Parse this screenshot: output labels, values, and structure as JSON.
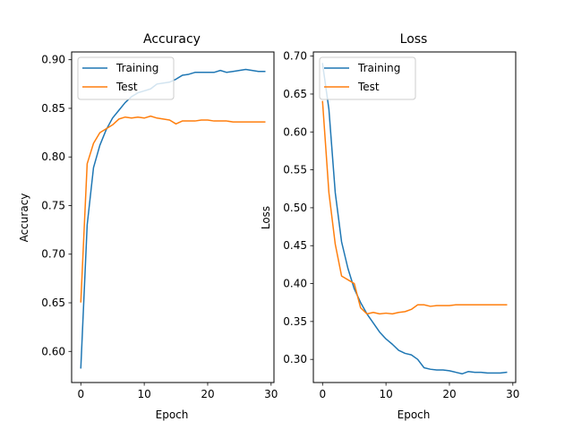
{
  "colors": {
    "training": "#1f77b4",
    "test": "#ff7f0e"
  },
  "chart_data": [
    {
      "type": "line",
      "title": "Accuracy",
      "xlabel": "Epoch",
      "ylabel": "Accuracy",
      "xlim": [
        -1.45,
        30.45
      ],
      "ylim": [
        0.568,
        0.908
      ],
      "xticks": [
        0,
        10,
        20,
        30
      ],
      "xtick_labels": [
        "0",
        "10",
        "20",
        "30"
      ],
      "yticks": [
        0.6,
        0.65,
        0.7,
        0.75,
        0.8,
        0.85,
        0.9
      ],
      "ytick_labels": [
        "0.60",
        "0.65",
        "0.70",
        "0.75",
        "0.80",
        "0.85",
        "0.90"
      ],
      "legend": "top-left",
      "grid": false,
      "x": [
        0,
        1,
        2,
        3,
        4,
        5,
        6,
        7,
        8,
        9,
        10,
        11,
        12,
        13,
        14,
        15,
        16,
        17,
        18,
        19,
        20,
        21,
        22,
        23,
        24,
        25,
        26,
        27,
        28,
        29
      ],
      "series": [
        {
          "name": "Training",
          "color_key": "training",
          "values": [
            0.583,
            0.73,
            0.789,
            0.812,
            0.828,
            0.84,
            0.848,
            0.856,
            0.862,
            0.866,
            0.868,
            0.87,
            0.875,
            0.876,
            0.877,
            0.88,
            0.884,
            0.885,
            0.887,
            0.887,
            0.887,
            0.887,
            0.889,
            0.887,
            0.888,
            0.889,
            0.89,
            0.889,
            0.888,
            0.888
          ]
        },
        {
          "name": "Test",
          "color_key": "test",
          "values": [
            0.651,
            0.793,
            0.814,
            0.825,
            0.829,
            0.833,
            0.839,
            0.841,
            0.84,
            0.841,
            0.84,
            0.842,
            0.84,
            0.839,
            0.838,
            0.834,
            0.837,
            0.837,
            0.837,
            0.838,
            0.838,
            0.837,
            0.837,
            0.837,
            0.836,
            0.836,
            0.836,
            0.836,
            0.836,
            0.836
          ]
        }
      ]
    },
    {
      "type": "line",
      "title": "Loss",
      "xlabel": "Epoch",
      "ylabel": "Loss",
      "xlim": [
        -1.45,
        30.45
      ],
      "ylim": [
        0.2695,
        0.7055
      ],
      "xticks": [
        0,
        10,
        20,
        30
      ],
      "xtick_labels": [
        "0",
        "10",
        "20",
        "30"
      ],
      "yticks": [
        0.3,
        0.35,
        0.4,
        0.45,
        0.5,
        0.55,
        0.6,
        0.65,
        0.7
      ],
      "ytick_labels": [
        "0.30",
        "0.35",
        "0.40",
        "0.45",
        "0.50",
        "0.55",
        "0.60",
        "0.65",
        "0.70"
      ],
      "legend": "top-left",
      "grid": false,
      "x": [
        0,
        1,
        2,
        3,
        4,
        5,
        6,
        7,
        8,
        9,
        10,
        11,
        12,
        13,
        14,
        15,
        16,
        17,
        18,
        19,
        20,
        21,
        22,
        23,
        24,
        25,
        26,
        27,
        28,
        29
      ],
      "series": [
        {
          "name": "Training",
          "color_key": "training",
          "values": [
            0.69,
            0.63,
            0.52,
            0.455,
            0.42,
            0.393,
            0.375,
            0.36,
            0.348,
            0.336,
            0.327,
            0.32,
            0.312,
            0.308,
            0.306,
            0.3,
            0.289,
            0.287,
            0.286,
            0.286,
            0.285,
            0.283,
            0.281,
            0.284,
            0.283,
            0.283,
            0.282,
            0.282,
            0.282,
            0.283
          ]
        },
        {
          "name": "Test",
          "color_key": "test",
          "values": [
            0.64,
            0.52,
            0.452,
            0.41,
            0.405,
            0.4,
            0.368,
            0.36,
            0.362,
            0.36,
            0.361,
            0.36,
            0.362,
            0.363,
            0.366,
            0.372,
            0.372,
            0.37,
            0.371,
            0.371,
            0.371,
            0.372,
            0.372,
            0.372,
            0.372,
            0.372,
            0.372,
            0.372,
            0.372,
            0.372
          ]
        }
      ]
    }
  ]
}
